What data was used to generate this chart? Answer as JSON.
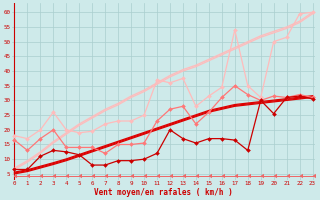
{
  "bg_color": "#ceeaea",
  "grid_color": "#aacece",
  "line_color_dark": "#cc0000",
  "xlabel": "Vent moyen/en rafales ( km/h )",
  "xlabel_color": "#cc0000",
  "ylabel_ticks": [
    5,
    10,
    15,
    20,
    25,
    30,
    35,
    40,
    45,
    50,
    55,
    60
  ],
  "xlim": [
    -0.2,
    23.2
  ],
  "ylim": [
    3,
    63
  ],
  "x": [
    0,
    1,
    2,
    3,
    4,
    5,
    6,
    7,
    8,
    9,
    10,
    11,
    12,
    13,
    14,
    15,
    16,
    17,
    18,
    19,
    20,
    21,
    22,
    23
  ],
  "series": [
    {
      "name": "upper_straight_light1",
      "color": "#ffbbbb",
      "lw": 0.9,
      "marker": null,
      "y": [
        7.0,
        9.5,
        12.5,
        16.0,
        19.0,
        22.0,
        24.5,
        27.0,
        29.0,
        31.5,
        33.5,
        36.0,
        38.5,
        40.5,
        42.0,
        44.0,
        46.0,
        48.0,
        50.0,
        52.0,
        53.5,
        55.0,
        57.0,
        60.0
      ]
    },
    {
      "name": "upper_straight_light2",
      "color": "#ffbbbb",
      "lw": 0.9,
      "marker": null,
      "y": [
        6.5,
        9.0,
        12.0,
        15.5,
        18.5,
        21.5,
        24.0,
        26.5,
        28.5,
        31.0,
        33.0,
        35.5,
        38.0,
        40.0,
        41.5,
        43.5,
        45.5,
        47.5,
        49.5,
        51.5,
        53.0,
        54.5,
        56.5,
        59.5
      ]
    },
    {
      "name": "upper_wavy_light",
      "color": "#ffbbbb",
      "lw": 0.9,
      "marker": "D",
      "markersize": 2.0,
      "y": [
        18.0,
        17.0,
        20.0,
        26.0,
        20.0,
        19.0,
        19.5,
        22.0,
        23.0,
        23.0,
        25.0,
        37.0,
        36.0,
        37.5,
        28.0,
        31.5,
        34.5,
        54.0,
        35.0,
        31.0,
        50.0,
        51.5,
        59.5,
        60.0
      ]
    },
    {
      "name": "lower_straight_dark1",
      "color": "#dd0000",
      "lw": 0.9,
      "marker": null,
      "y": [
        5.0,
        5.8,
        7.0,
        8.2,
        9.5,
        11.0,
        12.5,
        14.0,
        15.5,
        17.0,
        18.5,
        20.0,
        21.5,
        23.0,
        24.5,
        26.0,
        27.0,
        28.0,
        28.5,
        29.0,
        29.5,
        30.0,
        30.5,
        31.0
      ]
    },
    {
      "name": "lower_straight_dark2",
      "color": "#dd0000",
      "lw": 0.9,
      "marker": null,
      "y": [
        5.3,
        6.1,
        7.3,
        8.5,
        9.8,
        11.3,
        12.8,
        14.3,
        15.8,
        17.3,
        18.8,
        20.3,
        21.8,
        23.3,
        24.8,
        26.3,
        27.3,
        28.3,
        28.8,
        29.3,
        29.8,
        30.3,
        30.8,
        31.3
      ]
    },
    {
      "name": "lower_straight_dark3",
      "color": "#dd0000",
      "lw": 0.9,
      "marker": null,
      "y": [
        5.6,
        6.4,
        7.6,
        8.8,
        10.1,
        11.6,
        13.1,
        14.6,
        16.1,
        17.6,
        19.1,
        20.6,
        22.1,
        23.6,
        25.1,
        26.6,
        27.6,
        28.6,
        29.1,
        29.6,
        30.1,
        30.6,
        31.1,
        31.6
      ]
    },
    {
      "name": "lower_wavy_pink",
      "color": "#ff7777",
      "lw": 0.9,
      "marker": "D",
      "markersize": 2.0,
      "y": [
        16.5,
        13.0,
        17.0,
        20.0,
        14.0,
        14.0,
        14.0,
        12.0,
        15.0,
        15.0,
        15.5,
        23.0,
        27.0,
        28.0,
        22.0,
        26.0,
        31.0,
        35.0,
        32.0,
        30.0,
        31.5,
        31.0,
        32.0,
        31.0
      ]
    },
    {
      "name": "lower_wavy_dark",
      "color": "#cc0000",
      "lw": 0.9,
      "marker": "D",
      "markersize": 2.0,
      "y": [
        6.5,
        6.5,
        11.0,
        13.0,
        12.5,
        11.5,
        8.0,
        8.0,
        9.5,
        9.5,
        10.0,
        12.0,
        20.0,
        17.0,
        15.5,
        17.0,
        17.0,
        16.5,
        13.0,
        30.0,
        25.5,
        31.0,
        31.5,
        30.5
      ]
    },
    {
      "name": "bottom_arrow_line",
      "color": "#ee6666",
      "lw": 0.7,
      "marker": 4,
      "markersize": 2.5,
      "y": [
        4.2,
        4.2,
        4.2,
        4.2,
        4.2,
        4.2,
        4.2,
        4.2,
        4.2,
        4.2,
        4.2,
        4.2,
        4.2,
        4.2,
        4.2,
        4.2,
        4.2,
        4.2,
        4.2,
        4.2,
        4.2,
        4.2,
        4.2,
        4.2
      ]
    }
  ]
}
